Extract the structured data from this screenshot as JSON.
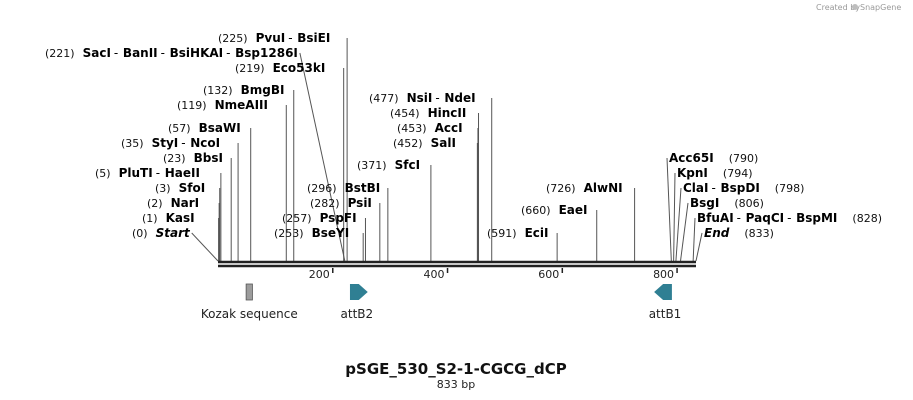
{
  "credit": {
    "prefix": "Created by",
    "brand": "SnapGene"
  },
  "plasmid": {
    "name": "pSGE_530_S2-1-CGCG_dCP",
    "size_label": "833 bp",
    "length": 833
  },
  "axis": {
    "ticks": [
      200,
      400,
      600,
      800
    ]
  },
  "colors": {
    "feature": "#2f7f93",
    "kozak": "#9c9c9c"
  },
  "features": [
    {
      "name": "Kozak sequence",
      "start": 49,
      "end": 60,
      "type": "box"
    },
    {
      "name": "attB2",
      "start": 230,
      "end": 254,
      "type": "arrow-right"
    },
    {
      "name": "attB1",
      "start": 767,
      "end": 791,
      "type": "arrow-left"
    }
  ],
  "sites": [
    {
      "pos": 225,
      "pos_label": "(225)",
      "enzymes": [
        "PvuI",
        "BsiEI"
      ]
    },
    {
      "pos": 221,
      "pos_label": "(221)",
      "enzymes": [
        "SacI",
        "BanII",
        "BsiHKAI",
        "Bsp1286I"
      ]
    },
    {
      "pos": 219,
      "pos_label": "(219)",
      "enzymes": [
        "Eco53kI"
      ]
    },
    {
      "pos": 132,
      "pos_label": "(132)",
      "enzymes": [
        "BmgBI"
      ]
    },
    {
      "pos": 119,
      "pos_label": "(119)",
      "enzymes": [
        "NmeAIII"
      ]
    },
    {
      "pos": 57,
      "pos_label": "(57)",
      "enzymes": [
        "BsaWI"
      ]
    },
    {
      "pos": 35,
      "pos_label": "(35)",
      "enzymes": [
        "StyI",
        "NcoI"
      ]
    },
    {
      "pos": 23,
      "pos_label": "(23)",
      "enzymes": [
        "BbsI"
      ]
    },
    {
      "pos": 5,
      "pos_label": "(5)",
      "enzymes": [
        "PluTI",
        "HaeII"
      ]
    },
    {
      "pos": 3,
      "pos_label": "(3)",
      "enzymes": [
        "SfoI"
      ]
    },
    {
      "pos": 2,
      "pos_label": "(2)",
      "enzymes": [
        "NarI"
      ]
    },
    {
      "pos": 1,
      "pos_label": "(1)",
      "enzymes": [
        "KasI"
      ]
    },
    {
      "pos": 0,
      "pos_label": "(0)",
      "enzymes": [
        "Start"
      ]
    },
    {
      "pos": 296,
      "pos_label": "(296)",
      "enzymes": [
        "BstBI"
      ]
    },
    {
      "pos": 282,
      "pos_label": "(282)",
      "enzymes": [
        "PsiI"
      ]
    },
    {
      "pos": 257,
      "pos_label": "(257)",
      "enzymes": [
        "PspFI"
      ]
    },
    {
      "pos": 253,
      "pos_label": "(253)",
      "enzymes": [
        "BseYI"
      ]
    },
    {
      "pos": 477,
      "pos_label": "(477)",
      "enzymes": [
        "NsiI",
        "NdeI"
      ]
    },
    {
      "pos": 454,
      "pos_label": "(454)",
      "enzymes": [
        "HincII"
      ]
    },
    {
      "pos": 453,
      "pos_label": "(453)",
      "enzymes": [
        "AccI"
      ]
    },
    {
      "pos": 452,
      "pos_label": "(452)",
      "enzymes": [
        "SalI"
      ]
    },
    {
      "pos": 371,
      "pos_label": "(371)",
      "enzymes": [
        "SfcI"
      ]
    },
    {
      "pos": 726,
      "pos_label": "(726)",
      "enzymes": [
        "AlwNI"
      ]
    },
    {
      "pos": 660,
      "pos_label": "(660)",
      "enzymes": [
        "EaeI"
      ]
    },
    {
      "pos": 591,
      "pos_label": "(591)",
      "enzymes": [
        "EciI"
      ]
    },
    {
      "pos": 790,
      "pos_label": "(790)",
      "enzymes": [
        "Acc65I"
      ]
    },
    {
      "pos": 794,
      "pos_label": "(794)",
      "enzymes": [
        "KpnI"
      ]
    },
    {
      "pos": 798,
      "pos_label": "(798)",
      "enzymes": [
        "ClaI",
        "BspDI"
      ]
    },
    {
      "pos": 806,
      "pos_label": "(806)",
      "enzymes": [
        "BsgI"
      ]
    },
    {
      "pos": 828,
      "pos_label": "(828)",
      "enzymes": [
        "BfuAI",
        "PaqCI",
        "BspMI"
      ]
    },
    {
      "pos": 833,
      "pos_label": "(833)",
      "enzymes": [
        "End"
      ]
    }
  ]
}
